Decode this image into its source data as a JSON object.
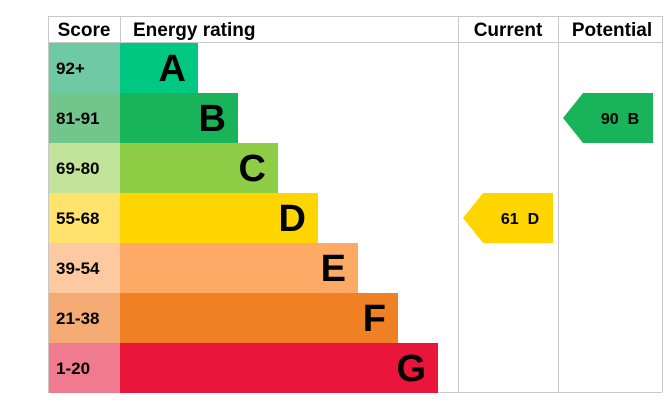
{
  "chart_data": {
    "type": "table",
    "headers": {
      "score": "Score",
      "rating": "Energy rating",
      "current": "Current",
      "potential": "Potential"
    },
    "bands": [
      {
        "score": "92+",
        "letter": "A",
        "color": "#00c781",
        "score_bg": "#6fc9a3",
        "letter_color": "#000000"
      },
      {
        "score": "81-91",
        "letter": "B",
        "color": "#19b459",
        "score_bg": "#72c58b",
        "letter_color": "#000000"
      },
      {
        "score": "69-80",
        "letter": "C",
        "color": "#8dce46",
        "score_bg": "#c1e39a",
        "letter_color": "#000000"
      },
      {
        "score": "55-68",
        "letter": "D",
        "color": "#ffd500",
        "score_bg": "#ffe36c",
        "letter_color": "#000000"
      },
      {
        "score": "39-54",
        "letter": "E",
        "color": "#fcaa65",
        "score_bg": "#fdc9a0",
        "letter_color": "#000000"
      },
      {
        "score": "21-38",
        "letter": "F",
        "color": "#ef8023",
        "score_bg": "#f4aa73",
        "letter_color": "#000000"
      },
      {
        "score": "1-20",
        "letter": "G",
        "color": "#e9153b",
        "score_bg": "#f07b8f",
        "letter_color": "#000000"
      }
    ],
    "current": {
      "value": 61,
      "letter": "D",
      "label": "61  D",
      "color": "#ffd500"
    },
    "potential": {
      "value": 90,
      "letter": "B",
      "label": "90  B",
      "color": "#19b459"
    }
  }
}
